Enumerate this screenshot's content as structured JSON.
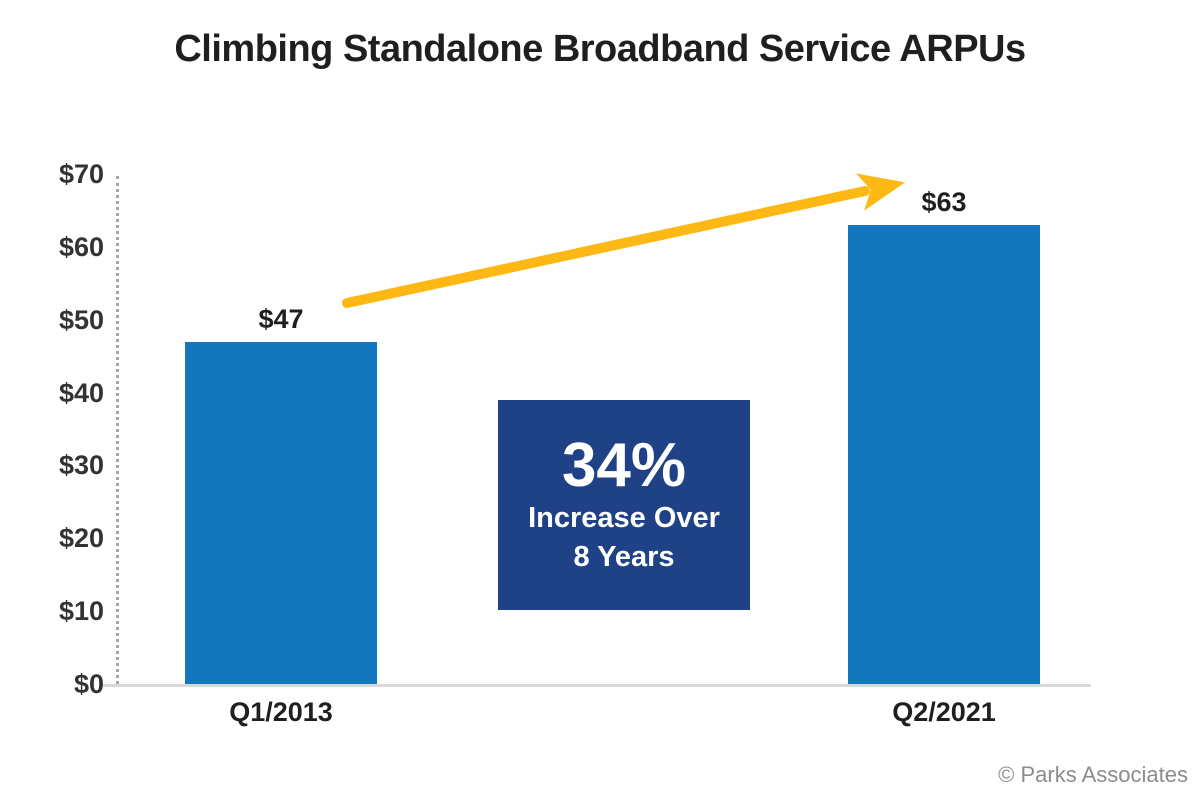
{
  "title": "Climbing Standalone Broadband Service ARPUs",
  "chart_data": {
    "type": "bar",
    "title": "Climbing Standalone Broadband Service ARPUs",
    "points": [
      {
        "category": "Q1/2013",
        "value": 47,
        "value_label": "$47"
      },
      {
        "category": "Q2/2021",
        "value": 63,
        "value_label": "$63"
      }
    ],
    "xlabel": "",
    "ylabel": "",
    "ylim": [
      0,
      70
    ],
    "ytick_interval": 10,
    "ytick_labels": [
      "$0",
      "$10",
      "$20",
      "$30",
      "$40",
      "$50",
      "$60",
      "$70"
    ],
    "grid": false,
    "legend": "none",
    "annotation": {
      "headline": "34%",
      "lines": [
        "Increase Over",
        "8 Years"
      ]
    },
    "arrow": "upward trend arrow from Q1/2013 bar to Q2/2021 bar",
    "source": "© Parks Associates"
  },
  "colors": {
    "bar": "#1477BE",
    "annotation_box": "#1F4185",
    "arrow": "#FDB813",
    "axis_dotted": "#A6A6A6",
    "baseline": "#D9D9D9",
    "text_dark": "#1F1F1F",
    "copyright": "#8C8C8C"
  }
}
